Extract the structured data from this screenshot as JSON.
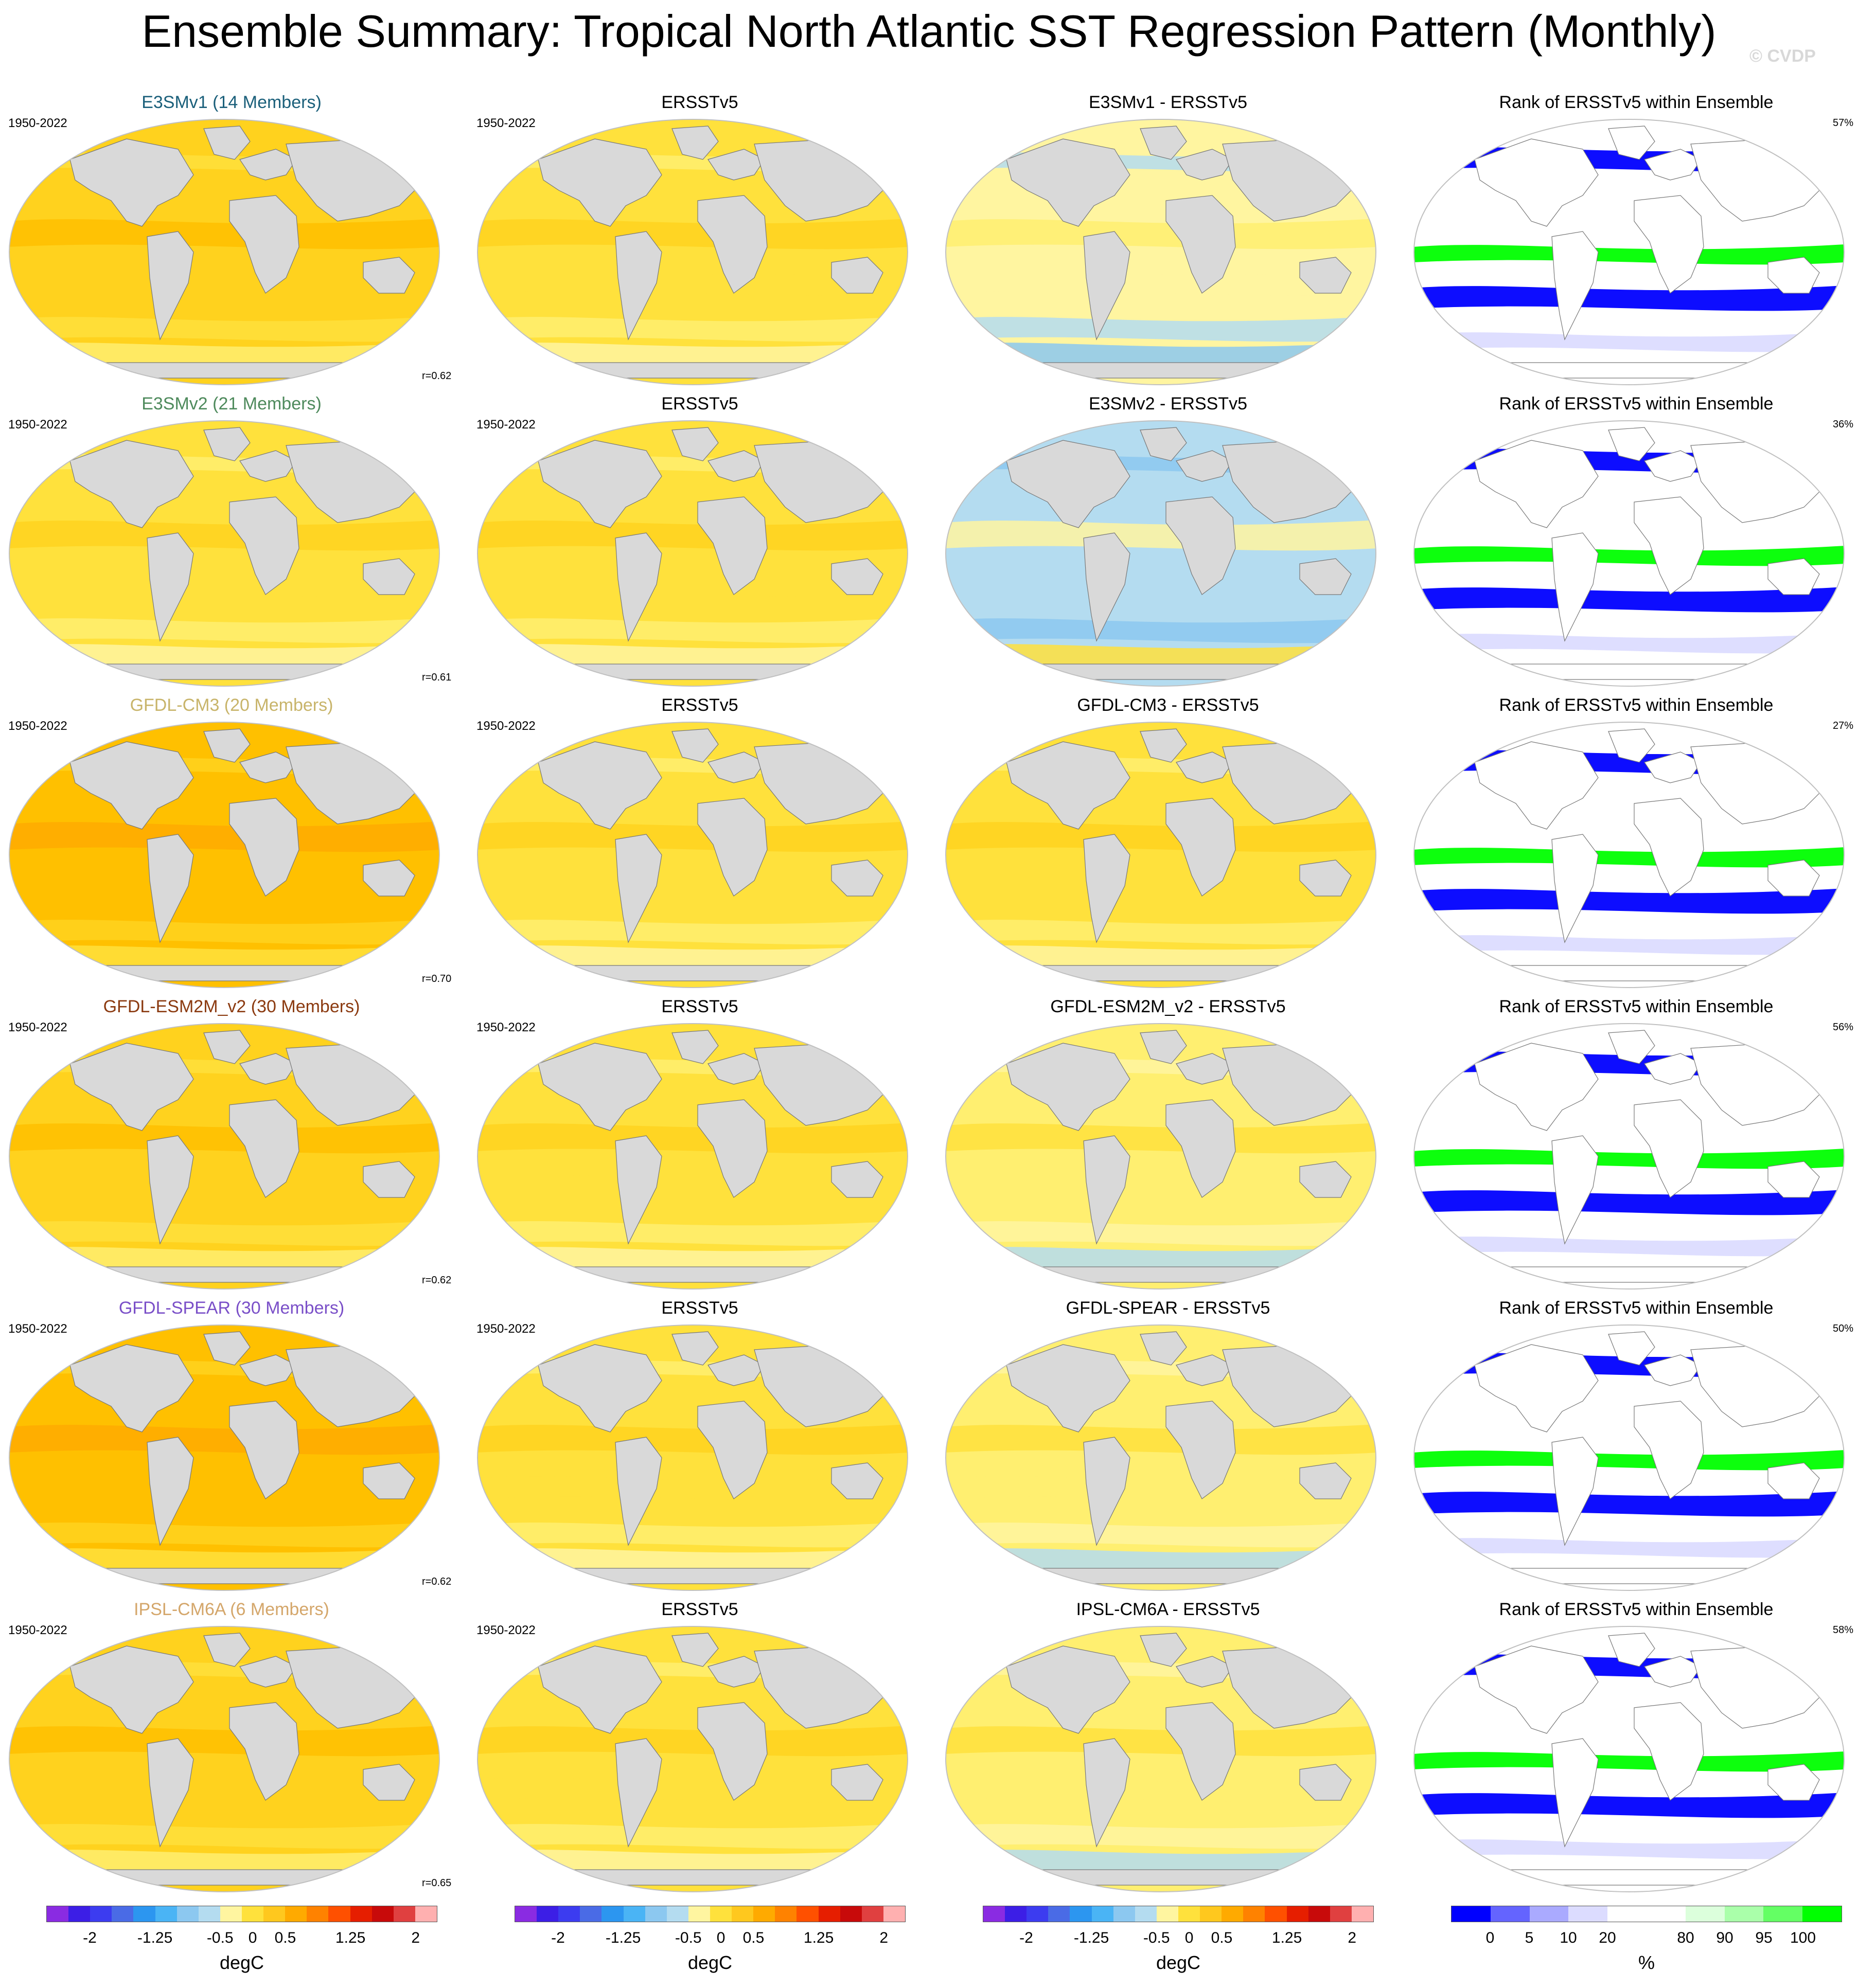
{
  "header": {
    "title": "Ensemble Summary: Tropical North Atlantic SST Regression Pattern (Monthly)",
    "copyright": "© CVDP"
  },
  "chart_data": {
    "type": "heatmap",
    "layout": "6 rows x 4 columns of global maps",
    "years": "1950-2022",
    "colors": {
      "land": "#d9d9d9",
      "ocean_edge": "#d0d0d0"
    },
    "rows": [
      {
        "model": "E3SMv1 (14 Members)",
        "model_color": "#1a5f7a",
        "diff_title": "E3SMv1 - ERSSTv5",
        "pattern_corr": "r=0.62",
        "rank_pct": "57%",
        "model_level": 3,
        "obs_level": 2,
        "diff_level": 0
      },
      {
        "model": "E3SMv2 (21 Members)",
        "model_color": "#4e8a5c",
        "diff_title": "E3SMv2 - ERSSTv5",
        "pattern_corr": "r=0.61",
        "rank_pct": "36%",
        "model_level": 2,
        "obs_level": 2,
        "diff_level": -1
      },
      {
        "model": "GFDL-CM3 (20 Members)",
        "model_color": "#c8b46a",
        "diff_title": "GFDL-CM3 - ERSSTv5",
        "pattern_corr": "r=0.70",
        "rank_pct": "27%",
        "model_level": 4,
        "obs_level": 2,
        "diff_level": 2
      },
      {
        "model": "GFDL-ESM2M_v2 (30 Members)",
        "model_color": "#8b3a10",
        "diff_title": "GFDL-ESM2M_v2 - ERSSTv5",
        "pattern_corr": "r=0.62",
        "rank_pct": "56%",
        "model_level": 3,
        "obs_level": 2,
        "diff_level": 1
      },
      {
        "model": "GFDL-SPEAR (30 Members)",
        "model_color": "#7a4fc8",
        "diff_title": "GFDL-SPEAR - ERSSTv5",
        "pattern_corr": "r=0.62",
        "rank_pct": "50%",
        "model_level": 4,
        "obs_level": 2,
        "diff_level": 1
      },
      {
        "model": "IPSL-CM6A (6 Members)",
        "model_color": "#d4a66a",
        "diff_title": "IPSL-CM6A - ERSSTv5",
        "pattern_corr": "r=0.65",
        "rank_pct": "58%",
        "model_level": 3,
        "obs_level": 2,
        "diff_level": 1
      }
    ],
    "obs_title": "ERSSTv5",
    "rank_title": "Rank of ERSSTv5 within Ensemble",
    "sst_colorbar": {
      "colors": [
        "#8a2be2",
        "#3c1ee6",
        "#3c3cf0",
        "#4a6be6",
        "#2c96f0",
        "#4ab4f5",
        "#8cc8f0",
        "#b4dcf0",
        "#fff5a0",
        "#ffe13c",
        "#ffc81e",
        "#ffaa00",
        "#ff8200",
        "#ff5000",
        "#e61e00",
        "#c80a0a",
        "#e04040",
        "#ffb0b0"
      ],
      "ticks": [
        "-2",
        "-1.25",
        "-0.5",
        "0",
        "0.5",
        "1.25",
        "2"
      ],
      "label": "degC"
    },
    "rank_colorbar": {
      "colors": [
        "#0000ff",
        "#6464ff",
        "#aaaaff",
        "#dcdcff",
        "#ffffff",
        "#ffffff",
        "#dcffdc",
        "#aaffaa",
        "#64ff64",
        "#00ff00"
      ],
      "ticks": [
        "0",
        "5",
        "10",
        "20",
        "80",
        "90",
        "95",
        "100"
      ],
      "label": "%"
    }
  }
}
